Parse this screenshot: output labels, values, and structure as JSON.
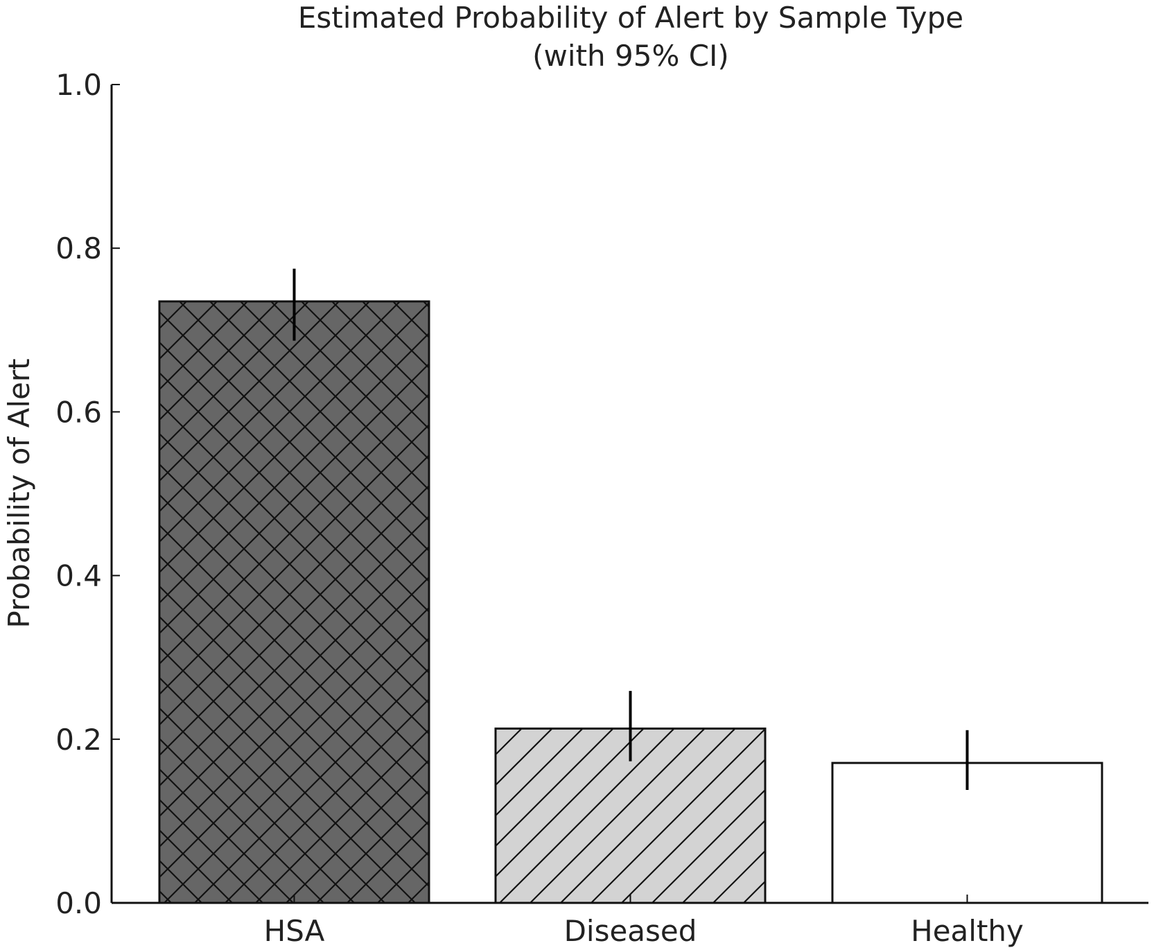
{
  "chart_data": {
    "type": "bar",
    "title": "Estimated Probability of Alert by Sample Type",
    "subtitle": "(with 95% CI)",
    "xlabel": "",
    "ylabel": "Probability of Alert",
    "ylim": [
      0,
      1.0
    ],
    "yticks": [
      "0.0",
      "0.2",
      "0.4",
      "0.6",
      "0.8",
      "1.0"
    ],
    "grid": false,
    "categories": [
      "HSA",
      "Diseased",
      "Healthy"
    ],
    "values": [
      0.735,
      0.213,
      0.171
    ],
    "ci_lower": [
      0.687,
      0.173,
      0.138
    ],
    "ci_upper": [
      0.775,
      0.259,
      0.211
    ],
    "fills": [
      "#666666",
      "#d3d3d3",
      "#ffffff"
    ],
    "hatches": [
      "crosshatch",
      "diagonal",
      "none"
    ]
  }
}
